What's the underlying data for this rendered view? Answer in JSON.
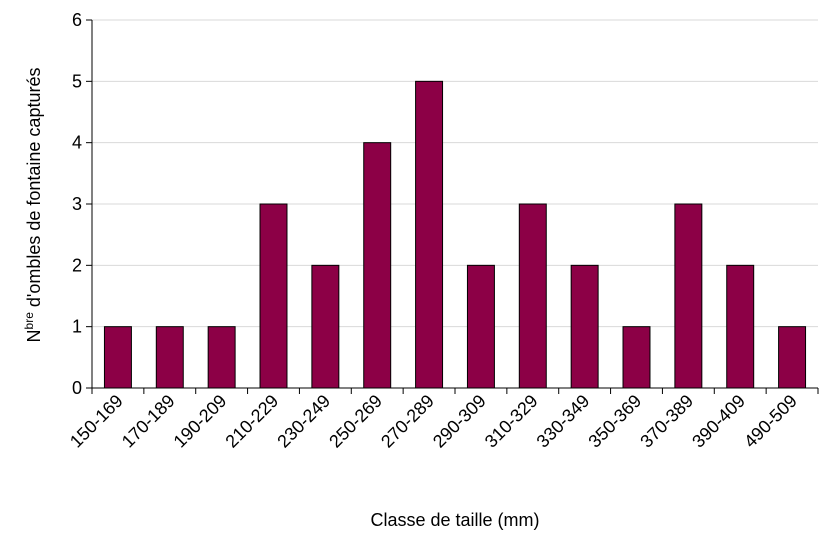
{
  "chart_data": {
    "type": "bar",
    "categories": [
      "150-169",
      "170-189",
      "190-209",
      "210-229",
      "230-249",
      "250-269",
      "270-289",
      "290-309",
      "310-329",
      "330-349",
      "350-369",
      "370-389",
      "390-409",
      "490-509"
    ],
    "values": [
      1,
      1,
      1,
      3,
      2,
      4,
      5,
      2,
      3,
      2,
      1,
      3,
      2,
      1
    ],
    "color": "#8c0046",
    "ylim": [
      0,
      6
    ],
    "yticks": [
      0,
      1,
      2,
      3,
      4,
      5,
      6
    ],
    "grid": true,
    "xlabel": "Classe de taille (mm)",
    "ylabel": [
      "N",
      "bre",
      " d'ombles de fontaine capturés"
    ]
  }
}
